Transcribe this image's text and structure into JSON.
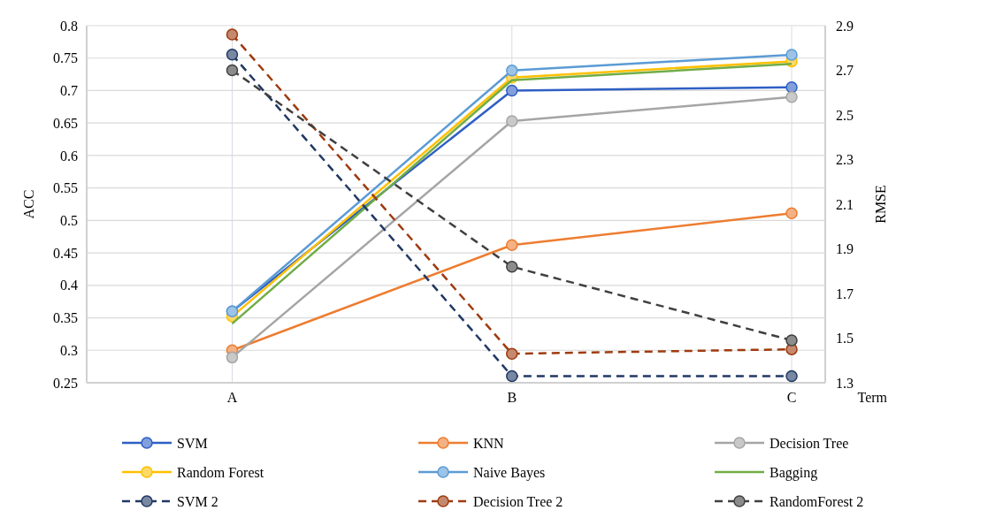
{
  "chart_data": {
    "type": "line",
    "xlabel": "Term",
    "ylabel": "ACC",
    "y2label": "RMSE",
    "categories": [
      "A",
      "B",
      "C"
    ],
    "ylim": [
      0.25,
      0.8
    ],
    "yticks": [
      0.25,
      0.3,
      0.35,
      0.4,
      0.45,
      0.5,
      0.55,
      0.6,
      0.65,
      0.7,
      0.75,
      0.8
    ],
    "y2lim": [
      1.3,
      2.9
    ],
    "y2ticks": [
      1.3,
      1.5,
      1.7,
      1.9,
      2.1,
      2.3,
      2.5,
      2.7,
      2.9
    ],
    "grid": true,
    "legend": "bottom",
    "series": [
      {
        "name": "SVM",
        "color": "#2e5fc4",
        "values": [
          0.36,
          0.7,
          0.705
        ],
        "marker": "circle",
        "line_style": "solid"
      },
      {
        "name": "KNN",
        "color": "#ed7d31",
        "values": [
          0.3,
          0.462,
          0.511
        ],
        "marker": "circle",
        "line_style": "solid"
      },
      {
        "name": "Decision Tree",
        "color": "#a5a5a5",
        "values": [
          0.289,
          0.653,
          0.69
        ],
        "marker": "circle",
        "line_style": "solid"
      },
      {
        "name": "Random Forest",
        "color": "#ffc000",
        "values": [
          0.352,
          0.72,
          0.745
        ],
        "marker": "circle",
        "line_style": "solid"
      },
      {
        "name": "Naive Bayes",
        "color": "#5b9bd5",
        "values": [
          0.36,
          0.731,
          0.755
        ],
        "marker": "circle",
        "line_style": "solid"
      },
      {
        "name": "Bagging",
        "color": "#70ad47",
        "values": [
          0.341,
          0.716,
          0.741
        ],
        "marker": "none",
        "line_style": "solid"
      },
      {
        "name": "SVM 2",
        "color": "#203864",
        "values": [
          2.77,
          1.33,
          1.33
        ],
        "marker": "circle",
        "line_style": "dashed",
        "axis": "y2"
      },
      {
        "name": "Decision Tree 2",
        "color": "#9e3b0f",
        "values": [
          2.86,
          1.43,
          1.45
        ],
        "marker": "circle",
        "line_style": "dashed",
        "axis": "y2"
      },
      {
        "name": "RandomForest 2",
        "color": "#404040",
        "values": [
          2.7,
          1.82,
          1.49
        ],
        "marker": "circle",
        "line_style": "dashed",
        "axis": "y2"
      }
    ]
  }
}
